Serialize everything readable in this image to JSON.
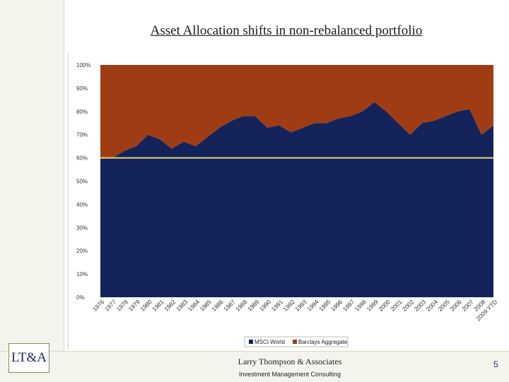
{
  "slide": {
    "title": "Asset Allocation shifts in non-rebalanced portfolio",
    "logo_text": "LT&A",
    "firm_name": "Larry Thompson & Associates",
    "firm_tagline": "Investment Management Consulting",
    "page_number": "5"
  },
  "chart_data": {
    "type": "area",
    "stacked": true,
    "percent_stacked": true,
    "categories": [
      "1976",
      "1977",
      "1978",
      "1979",
      "1980",
      "1981",
      "1982",
      "1983",
      "1984",
      "1985",
      "1986",
      "1987",
      "1988",
      "1989",
      "1990",
      "1991",
      "1992",
      "1993",
      "1994",
      "1995",
      "1996",
      "1997",
      "1998",
      "1999",
      "2000",
      "2001",
      "2002",
      "2003",
      "2004",
      "2005",
      "2006",
      "2007",
      "2008",
      "2009 YTD"
    ],
    "series": [
      {
        "name": "MSCI World",
        "color": "#14245a",
        "values": [
          60,
          60,
          63,
          65,
          70,
          68,
          64,
          67,
          65,
          69,
          73,
          76,
          78,
          78,
          73,
          74,
          71,
          73,
          75,
          75,
          77,
          78,
          80,
          84,
          80,
          75,
          70,
          75,
          76,
          78,
          80,
          81,
          70,
          74
        ]
      },
      {
        "name": "Barclays Aggregate",
        "color": "#a03c14",
        "values": [
          40,
          40,
          37,
          35,
          30,
          32,
          36,
          33,
          35,
          31,
          27,
          24,
          22,
          22,
          27,
          26,
          29,
          27,
          25,
          25,
          23,
          22,
          20,
          16,
          20,
          25,
          30,
          25,
          24,
          22,
          20,
          19,
          30,
          26
        ]
      }
    ],
    "reference_line": {
      "value": 60,
      "color": "#e0d878"
    },
    "y_ticks": [
      "0%",
      "10%",
      "20%",
      "30%",
      "40%",
      "50%",
      "60%",
      "70%",
      "80%",
      "90%",
      "100%"
    ],
    "ylim": [
      0,
      100
    ],
    "grid": false,
    "legend_position": "bottom",
    "title": "",
    "xlabel": "",
    "ylabel": ""
  }
}
